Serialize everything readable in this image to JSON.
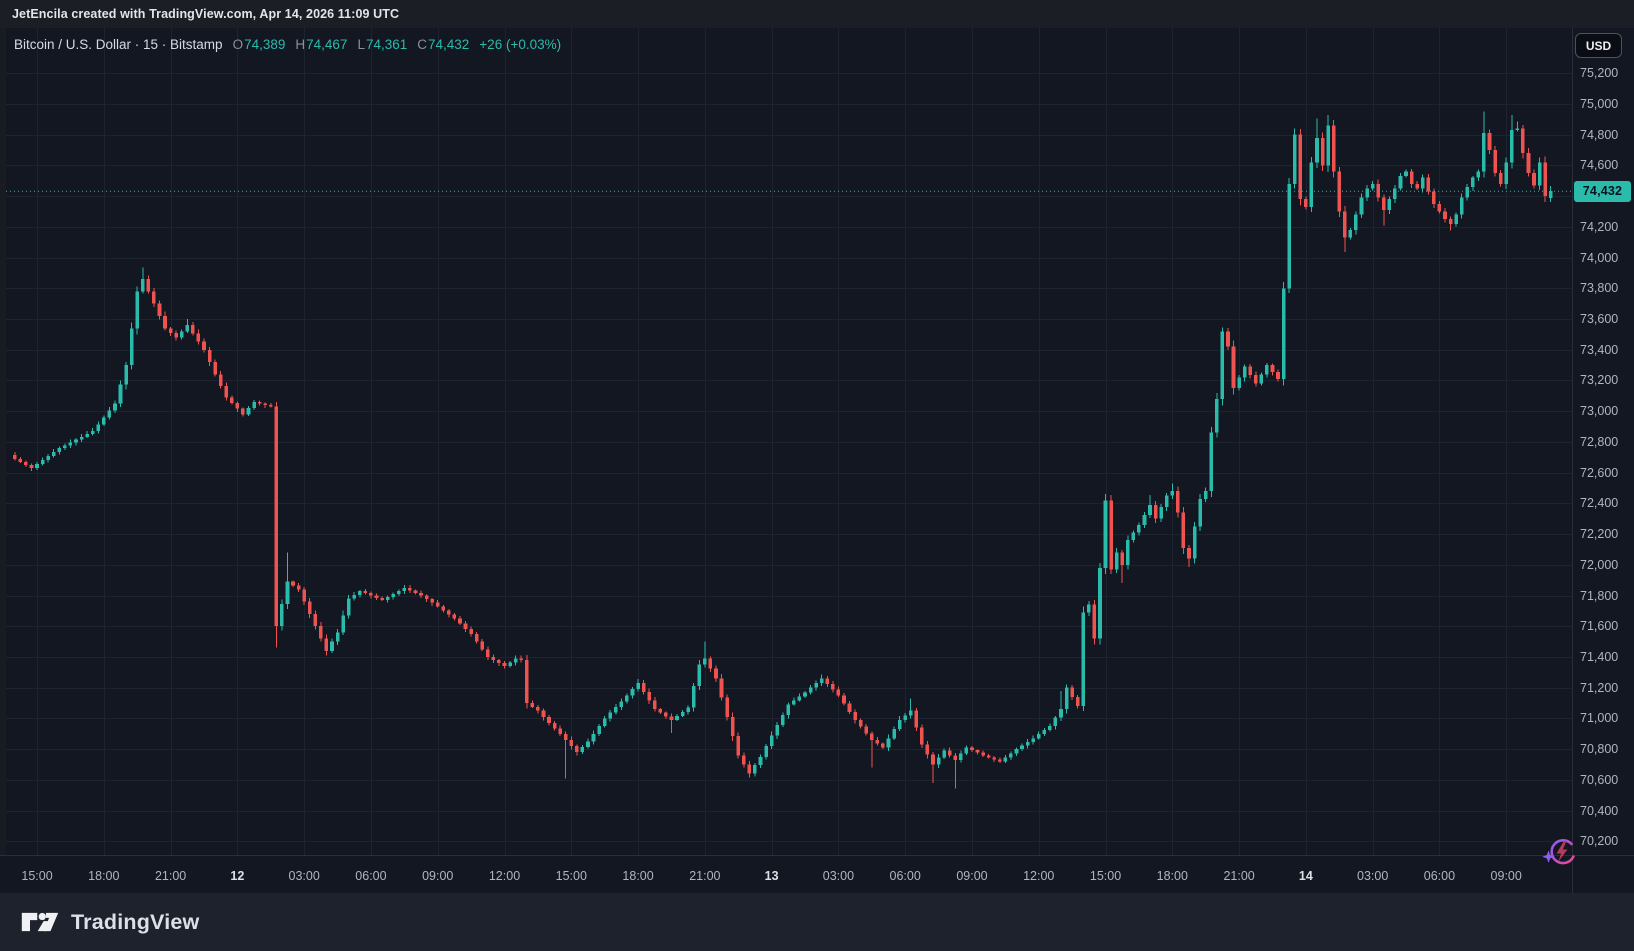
{
  "attribution": {
    "text": "JetEncila created with TradingView.com, Apr 14, 2026 11:09 UTC"
  },
  "symbol_bar": {
    "title": "Bitcoin / U.S. Dollar · 15 · Bitstamp",
    "ohlc": [
      {
        "label": "O",
        "value": "74,389"
      },
      {
        "label": "H",
        "value": "74,467"
      },
      {
        "label": "L",
        "value": "74,361"
      },
      {
        "label": "C",
        "value": "74,432"
      }
    ],
    "change": "+26 (+0.03%)"
  },
  "currency_button": {
    "label": "USD"
  },
  "footer": {
    "brand": "TradingView"
  },
  "last_price": {
    "text": "74,432",
    "value": 74432
  },
  "colors": {
    "up": "#2abbab",
    "down": "#ef5350",
    "background": "#131722",
    "grid": "#1e2330",
    "separator": "#2a2e39",
    "axis_text": "#b2b5be",
    "badge_bg": "#2abbab",
    "badge_text": "#071420",
    "attribution_bg": "#1b1e25",
    "footer_bg": "#1e222d",
    "spark_purple": "#8b5cf6",
    "spark_pink": "#ec4899"
  },
  "price_axis": {
    "labels": [
      {
        "text": "75,200",
        "value": 75200
      },
      {
        "text": "75,000",
        "value": 75000
      },
      {
        "text": "74,800",
        "value": 74800
      },
      {
        "text": "74,600",
        "value": 74600
      },
      {
        "text": "74,400",
        "value": 74400,
        "hidden_behind_badge": true
      },
      {
        "text": "74,200",
        "value": 74200
      },
      {
        "text": "74,000",
        "value": 74000
      },
      {
        "text": "73,800",
        "value": 73800
      },
      {
        "text": "73,600",
        "value": 73600
      },
      {
        "text": "73,400",
        "value": 73400
      },
      {
        "text": "73,200",
        "value": 73200
      },
      {
        "text": "73,000",
        "value": 73000
      },
      {
        "text": "72,800",
        "value": 72800
      },
      {
        "text": "72,600",
        "value": 72600
      },
      {
        "text": "72,400",
        "value": 72400
      },
      {
        "text": "72,200",
        "value": 72200
      },
      {
        "text": "72,000",
        "value": 72000
      },
      {
        "text": "71,800",
        "value": 71800
      },
      {
        "text": "71,600",
        "value": 71600
      },
      {
        "text": "71,400",
        "value": 71400
      },
      {
        "text": "71,200",
        "value": 71200
      },
      {
        "text": "71,000",
        "value": 71000
      },
      {
        "text": "70,800",
        "value": 70800
      },
      {
        "text": "70,600",
        "value": 70600
      },
      {
        "text": "70,400",
        "value": 70400
      },
      {
        "text": "70,200",
        "value": 70200
      }
    ]
  },
  "time_axis": {
    "labels": [
      {
        "text": "15:00",
        "i": 4,
        "major": false
      },
      {
        "text": "18:00",
        "i": 16,
        "major": false
      },
      {
        "text": "21:00",
        "i": 28,
        "major": false
      },
      {
        "text": "12",
        "i": 40,
        "major": true
      },
      {
        "text": "03:00",
        "i": 52,
        "major": false
      },
      {
        "text": "06:00",
        "i": 64,
        "major": false
      },
      {
        "text": "09:00",
        "i": 76,
        "major": false
      },
      {
        "text": "12:00",
        "i": 88,
        "major": false
      },
      {
        "text": "15:00",
        "i": 100,
        "major": false
      },
      {
        "text": "18:00",
        "i": 112,
        "major": false
      },
      {
        "text": "21:00",
        "i": 124,
        "major": false
      },
      {
        "text": "13",
        "i": 136,
        "major": true
      },
      {
        "text": "03:00",
        "i": 148,
        "major": false
      },
      {
        "text": "06:00",
        "i": 160,
        "major": false
      },
      {
        "text": "09:00",
        "i": 172,
        "major": false
      },
      {
        "text": "12:00",
        "i": 184,
        "major": false
      },
      {
        "text": "15:00",
        "i": 196,
        "major": false
      },
      {
        "text": "18:00",
        "i": 208,
        "major": false
      },
      {
        "text": "21:00",
        "i": 220,
        "major": false
      },
      {
        "text": "14",
        "i": 232,
        "major": true
      },
      {
        "text": "03:00",
        "i": 244,
        "major": false
      },
      {
        "text": "06:00",
        "i": 256,
        "major": false
      },
      {
        "text": "09:00",
        "i": 268,
        "major": false
      }
    ]
  },
  "chart_data": {
    "type": "candlestick",
    "symbol": "Bitcoin / U.S. Dollar",
    "exchange": "Bitstamp",
    "interval_minutes": 15,
    "candle_count": 277,
    "ylim": [
      70100,
      75280
    ],
    "price_grid_step": 200,
    "last_candle": {
      "open": 74389,
      "high": 74467,
      "low": 74361,
      "close": 74432
    },
    "close_anchors": [
      [
        0,
        72690
      ],
      [
        3,
        72630
      ],
      [
        8,
        72760
      ],
      [
        14,
        72870
      ],
      [
        18,
        73050
      ],
      [
        20,
        73300
      ],
      [
        22,
        73780
      ],
      [
        23,
        73860
      ],
      [
        25,
        73700
      ],
      [
        27,
        73540
      ],
      [
        29,
        73480
      ],
      [
        31,
        73560
      ],
      [
        34,
        73400
      ],
      [
        36,
        73240
      ],
      [
        38,
        73090
      ],
      [
        41,
        72980
      ],
      [
        43,
        73060
      ],
      [
        46,
        73030
      ],
      [
        47,
        71600
      ],
      [
        49,
        71890
      ],
      [
        51,
        71840
      ],
      [
        54,
        71600
      ],
      [
        56,
        71440
      ],
      [
        58,
        71560
      ],
      [
        60,
        71780
      ],
      [
        62,
        71830
      ],
      [
        66,
        71770
      ],
      [
        70,
        71850
      ],
      [
        73,
        71800
      ],
      [
        76,
        71730
      ],
      [
        79,
        71650
      ],
      [
        82,
        71550
      ],
      [
        85,
        71400
      ],
      [
        88,
        71340
      ],
      [
        90,
        71390
      ],
      [
        91,
        71380
      ],
      [
        92,
        71100
      ],
      [
        94,
        71050
      ],
      [
        96,
        70970
      ],
      [
        99,
        70860
      ],
      [
        101,
        70780
      ],
      [
        103,
        70850
      ],
      [
        106,
        71000
      ],
      [
        109,
        71110
      ],
      [
        112,
        71230
      ],
      [
        115,
        71060
      ],
      [
        118,
        70990
      ],
      [
        121,
        71070
      ],
      [
        123,
        71350
      ],
      [
        124,
        71390
      ],
      [
        126,
        71260
      ],
      [
        128,
        71010
      ],
      [
        130,
        70760
      ],
      [
        132,
        70640
      ],
      [
        134,
        70750
      ],
      [
        136,
        70890
      ],
      [
        139,
        71090
      ],
      [
        142,
        71170
      ],
      [
        145,
        71260
      ],
      [
        148,
        71150
      ],
      [
        151,
        70990
      ],
      [
        154,
        70860
      ],
      [
        156,
        70810
      ],
      [
        159,
        70990
      ],
      [
        161,
        71050
      ],
      [
        163,
        70830
      ],
      [
        165,
        70700
      ],
      [
        167,
        70790
      ],
      [
        169,
        70730
      ],
      [
        171,
        70810
      ],
      [
        174,
        70760
      ],
      [
        177,
        70720
      ],
      [
        180,
        70800
      ],
      [
        183,
        70870
      ],
      [
        186,
        70950
      ],
      [
        188,
        71060
      ],
      [
        189,
        71200
      ],
      [
        190,
        71140
      ],
      [
        191,
        71080
      ],
      [
        192,
        71690
      ],
      [
        193,
        71740
      ],
      [
        194,
        71520
      ],
      [
        195,
        71980
      ],
      [
        196,
        72420
      ],
      [
        197,
        71970
      ],
      [
        198,
        72080
      ],
      [
        199,
        72000
      ],
      [
        200,
        72160
      ],
      [
        202,
        72260
      ],
      [
        204,
        72390
      ],
      [
        205,
        72300
      ],
      [
        207,
        72450
      ],
      [
        208,
        72480
      ],
      [
        209,
        72340
      ],
      [
        210,
        72110
      ],
      [
        211,
        72040
      ],
      [
        212,
        72250
      ],
      [
        213,
        72430
      ],
      [
        214,
        72480
      ],
      [
        215,
        72860
      ],
      [
        216,
        73080
      ],
      [
        217,
        73520
      ],
      [
        218,
        73420
      ],
      [
        219,
        73150
      ],
      [
        221,
        73290
      ],
      [
        223,
        73180
      ],
      [
        225,
        73300
      ],
      [
        227,
        73210
      ],
      [
        228,
        73800
      ],
      [
        229,
        74480
      ],
      [
        230,
        74800
      ],
      [
        231,
        74380
      ],
      [
        232,
        74330
      ],
      [
        233,
        74620
      ],
      [
        234,
        74780
      ],
      [
        235,
        74600
      ],
      [
        236,
        74860
      ],
      [
        237,
        74560
      ],
      [
        238,
        74300
      ],
      [
        239,
        74130
      ],
      [
        240,
        74180
      ],
      [
        241,
        74280
      ],
      [
        242,
        74390
      ],
      [
        243,
        74450
      ],
      [
        244,
        74480
      ],
      [
        245,
        74390
      ],
      [
        246,
        74310
      ],
      [
        247,
        74380
      ],
      [
        248,
        74450
      ],
      [
        249,
        74530
      ],
      [
        250,
        74560
      ],
      [
        251,
        74480
      ],
      [
        252,
        74450
      ],
      [
        253,
        74520
      ],
      [
        254,
        74430
      ],
      [
        255,
        74350
      ],
      [
        256,
        74300
      ],
      [
        257,
        74250
      ],
      [
        258,
        74220
      ],
      [
        259,
        74280
      ],
      [
        260,
        74390
      ],
      [
        261,
        74460
      ],
      [
        262,
        74520
      ],
      [
        263,
        74560
      ],
      [
        264,
        74810
      ],
      [
        265,
        74700
      ],
      [
        266,
        74550
      ],
      [
        267,
        74480
      ],
      [
        268,
        74620
      ],
      [
        269,
        74830
      ],
      [
        270,
        74840
      ],
      [
        271,
        74680
      ],
      [
        272,
        74550
      ],
      [
        273,
        74470
      ],
      [
        274,
        74620
      ],
      [
        275,
        74400
      ],
      [
        276,
        74432
      ]
    ],
    "wick_overrides": [
      [
        3,
        null,
        72610
      ],
      [
        23,
        73935,
        null
      ],
      [
        31,
        73600,
        null
      ],
      [
        47,
        null,
        71460
      ],
      [
        49,
        72080,
        null
      ],
      [
        56,
        null,
        71410
      ],
      [
        99,
        null,
        70610
      ],
      [
        112,
        71255,
        null
      ],
      [
        118,
        null,
        70905
      ],
      [
        124,
        71500,
        null
      ],
      [
        145,
        71285,
        null
      ],
      [
        154,
        null,
        70680
      ],
      [
        161,
        71130,
        null
      ],
      [
        165,
        null,
        70580
      ],
      [
        169,
        null,
        70545
      ],
      [
        188,
        71180,
        null
      ],
      [
        196,
        72460,
        null
      ],
      [
        199,
        null,
        71880
      ],
      [
        204,
        72455,
        null
      ],
      [
        208,
        72530,
        null
      ],
      [
        211,
        null,
        71985
      ],
      [
        217,
        73545,
        null
      ],
      [
        230,
        74840,
        null
      ],
      [
        234,
        74905,
        null
      ],
      [
        236,
        74930,
        null
      ],
      [
        239,
        null,
        74035
      ],
      [
        246,
        null,
        74210
      ],
      [
        258,
        null,
        74175
      ],
      [
        264,
        74950,
        null
      ],
      [
        269,
        74930,
        null
      ],
      [
        270,
        74885,
        null
      ]
    ]
  }
}
